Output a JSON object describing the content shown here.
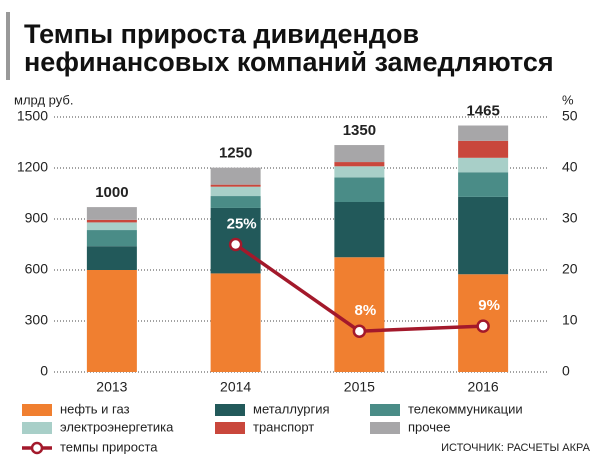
{
  "chart_data": {
    "type": "bar",
    "title": [
      "Темпы прироста дивидендов",
      "нефинансовых компаний замедляются"
    ],
    "y_label": "млрд руб.",
    "y2_label": "%",
    "categories": [
      "2013",
      "2014",
      "2015",
      "2016"
    ],
    "series": [
      {
        "name": "нефть и газ",
        "color": "#f07f30",
        "values": [
          600,
          580,
          675,
          575
        ]
      },
      {
        "name": "металлургия",
        "color": "#22595a",
        "values": [
          140,
          385,
          325,
          455
        ]
      },
      {
        "name": "телекоммуникации",
        "color": "#4a8c87",
        "values": [
          95,
          70,
          145,
          145
        ]
      },
      {
        "name": "электроэнергетика",
        "color": "#a8cfc8",
        "values": [
          45,
          55,
          65,
          85
        ]
      },
      {
        "name": "транспорт",
        "color": "#c9473c",
        "values": [
          15,
          12,
          25,
          100
        ]
      },
      {
        "name": "прочее",
        "color": "#a7a6a8",
        "values": [
          75,
          100,
          100,
          90
        ]
      },
      {
        "name": "темпы прироста",
        "color": "#a3192b",
        "type": "line",
        "axis": "y2",
        "values": [
          null,
          25,
          8,
          9
        ],
        "value_labels": [
          null,
          "25%",
          "8%",
          "9%"
        ]
      }
    ],
    "totals": [
      1000,
      1250,
      1350,
      1465
    ],
    "ylim": [
      0,
      1500
    ],
    "yticks": [
      0,
      300,
      600,
      900,
      1200,
      1500
    ],
    "y2lim": [
      0,
      50
    ],
    "y2ticks": [
      0,
      10,
      20,
      30,
      40,
      50
    ],
    "grid": true,
    "source": "ИСТОЧНИК: РАСЧЕТЫ АКРА"
  }
}
